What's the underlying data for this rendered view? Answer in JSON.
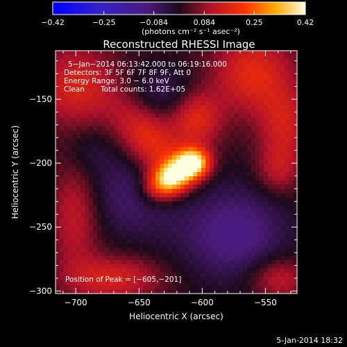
{
  "chart_data": {
    "type": "heatmap",
    "title": "Reconstructed RHESSI Image",
    "xlabel": "Heliocentric X (arcsec)",
    "ylabel": "Heliocentric Y (arcsec)",
    "xlim": [
      -716,
      -525
    ],
    "ylim": [
      -302,
      -112
    ],
    "x_ticks": [
      -700,
      -650,
      -600,
      -550
    ],
    "y_ticks": [
      -300,
      -250,
      -200,
      -150
    ],
    "x_tick_labels": [
      "−700",
      "−650",
      "−600",
      "−550"
    ],
    "y_tick_labels": [
      "−300",
      "−250",
      "−200",
      "−150"
    ],
    "colorbar": {
      "range": [
        -0.42,
        0.42
      ],
      "ticks": [
        -0.42,
        -0.25,
        -0.084,
        0.084,
        0.25,
        0.42
      ],
      "tick_labels": [
        "−0.42",
        "−0.25",
        "−0.084",
        "0.084",
        "0.25",
        "0.42"
      ],
      "unit_label": "(photons cm⁻² s⁻¹ asec⁻²)"
    },
    "annotations": [
      "5−Jan−2014 06:13:42.000 to 06:19:16.000",
      "Detectors: 3F 5F 6F 7F 8F 9F, Att 0",
      "Energy Range: 3.0 − 6.0 keV",
      "Clean",
      "Total counts: 1.62E+05"
    ],
    "peak_label": "Position of Peak = [−605,−201]",
    "peak": {
      "x": -605,
      "y": -201,
      "value": 0.42
    },
    "sources": [
      {
        "x": -625,
        "y": -212,
        "amp": 0.4,
        "sx": 14,
        "sy": 9,
        "rot": 0.55
      },
      {
        "x": -607,
        "y": -200,
        "amp": 0.36,
        "sx": 9,
        "sy": 8,
        "rot": 0.0
      },
      {
        "x": -640,
        "y": -185,
        "amp": 0.18,
        "sx": 28,
        "sy": 14,
        "rot": -0.9
      },
      {
        "x": -605,
        "y": -165,
        "amp": 0.16,
        "sx": 14,
        "sy": 16,
        "rot": 0.0
      },
      {
        "x": -700,
        "y": -140,
        "amp": 0.14,
        "sx": 22,
        "sy": 22,
        "rot": 0.0
      },
      {
        "x": -560,
        "y": -130,
        "amp": 0.16,
        "sx": 22,
        "sy": 22,
        "rot": 0.0
      },
      {
        "x": -535,
        "y": -170,
        "amp": 0.12,
        "sx": 14,
        "sy": 20,
        "rot": 0.0
      },
      {
        "x": -700,
        "y": -240,
        "amp": 0.12,
        "sx": 14,
        "sy": 30,
        "rot": 0.0
      },
      {
        "x": -670,
        "y": -290,
        "amp": 0.14,
        "sx": 26,
        "sy": 12,
        "rot": 0.0
      },
      {
        "x": -540,
        "y": -290,
        "amp": 0.12,
        "sx": 16,
        "sy": 12,
        "rot": 0.0
      },
      {
        "x": -540,
        "y": -205,
        "amp": 0.1,
        "sx": 12,
        "sy": 14,
        "rot": 0.0
      },
      {
        "x": -575,
        "y": -255,
        "amp": -0.14,
        "sx": 30,
        "sy": 26,
        "rot": 0.0
      },
      {
        "x": -655,
        "y": -225,
        "amp": -0.1,
        "sx": 28,
        "sy": 24,
        "rot": 0.0
      },
      {
        "x": -630,
        "y": -145,
        "amp": -0.08,
        "sx": 20,
        "sy": 14,
        "rot": 0.0
      },
      {
        "x": -690,
        "y": -190,
        "amp": -0.05,
        "sx": 14,
        "sy": 14,
        "rot": 0.0
      }
    ],
    "grid": false,
    "legend": "none"
  },
  "footer": {
    "timestamp": "5-Jan-2014 18:32"
  },
  "colors": {
    "background": "#000000",
    "text": "#ffffff"
  }
}
